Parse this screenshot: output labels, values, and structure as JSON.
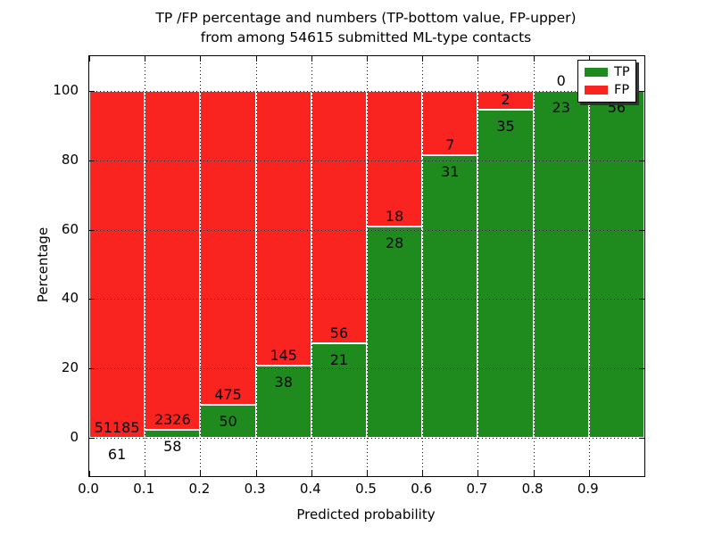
{
  "title": {
    "line1": "TP /FP percentage and numbers (TP-bottom value, FP-upper)",
    "line2": "from among 54615 submitted ML-type contacts"
  },
  "axes": {
    "x_label": "Predicted probability",
    "y_label": "Percentage",
    "x_ticks": [
      "0.0",
      "0.1",
      "0.2",
      "0.3",
      "0.4",
      "0.5",
      "0.6",
      "0.7",
      "0.8",
      "0.9"
    ],
    "x_tick_values": [
      0.0,
      0.1,
      0.2,
      0.3,
      0.4,
      0.5,
      0.6,
      0.7,
      0.8,
      0.9
    ],
    "y_ticks": [
      "0",
      "20",
      "40",
      "60",
      "80",
      "100"
    ],
    "y_tick_values": [
      0,
      20,
      40,
      60,
      80,
      100
    ],
    "xlim": [
      0.0,
      1.0
    ],
    "ylim": [
      -11,
      110
    ],
    "grid": true,
    "grid_style": "dotted"
  },
  "legend": {
    "position": "upper right",
    "items": [
      {
        "label": "TP",
        "color": "#1f8b1f"
      },
      {
        "label": "FP",
        "color": "#f92420"
      }
    ]
  },
  "colors": {
    "tp": "#1f8b1f",
    "fp": "#f92420",
    "grid": "#000000",
    "text": "#000000",
    "background": "#ffffff",
    "bar_edge": "#ffffff"
  },
  "chart_data": {
    "type": "bar",
    "stacked": true,
    "normalized_to_percent": true,
    "title": "TP /FP percentage and numbers (TP-bottom value, FP-upper) from among 54615 submitted ML-type contacts",
    "xlabel": "Predicted probability",
    "ylabel": "Percentage",
    "total_contacts": 54615,
    "bin_width": 0.1,
    "bin_starts": [
      0.0,
      0.1,
      0.2,
      0.3,
      0.4,
      0.5,
      0.6,
      0.7,
      0.8,
      0.9
    ],
    "categories": [
      "0.0-0.1",
      "0.1-0.2",
      "0.2-0.3",
      "0.3-0.4",
      "0.4-0.5",
      "0.5-0.6",
      "0.6-0.7",
      "0.7-0.8",
      "0.8-0.9",
      "0.9-1.0"
    ],
    "series": [
      {
        "name": "TP",
        "counts": [
          61,
          58,
          50,
          38,
          21,
          28,
          31,
          35,
          23,
          56
        ]
      },
      {
        "name": "FP",
        "counts": [
          51185,
          2326,
          475,
          145,
          56,
          18,
          7,
          2,
          0,
          0
        ]
      }
    ],
    "annotation_note": "FP count printed above TP/FP boundary, TP count printed below it",
    "ylim": [
      -11,
      110
    ],
    "legend_position": "upper right"
  }
}
